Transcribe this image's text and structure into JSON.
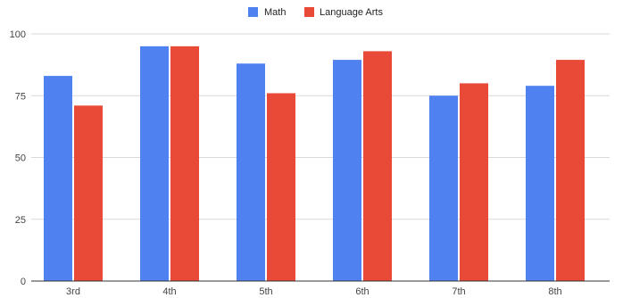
{
  "chart_data": {
    "type": "bar",
    "categories": [
      "3rd",
      "4th",
      "5th",
      "6th",
      "7th",
      "8th"
    ],
    "series": [
      {
        "name": "Math",
        "values": [
          83,
          95,
          88,
          89.5,
          75,
          79
        ],
        "color": "#4f82f0"
      },
      {
        "name": "Language Arts",
        "values": [
          71,
          95,
          76,
          93,
          80,
          89.5
        ],
        "color": "#e84a37"
      }
    ],
    "y_ticks": [
      "0",
      "25",
      "50",
      "75",
      "100"
    ],
    "ylim": [
      0,
      100
    ],
    "grid": true,
    "legend_position": "top-center",
    "axis_color": "#333333",
    "grid_color": "#d9d9d9"
  }
}
